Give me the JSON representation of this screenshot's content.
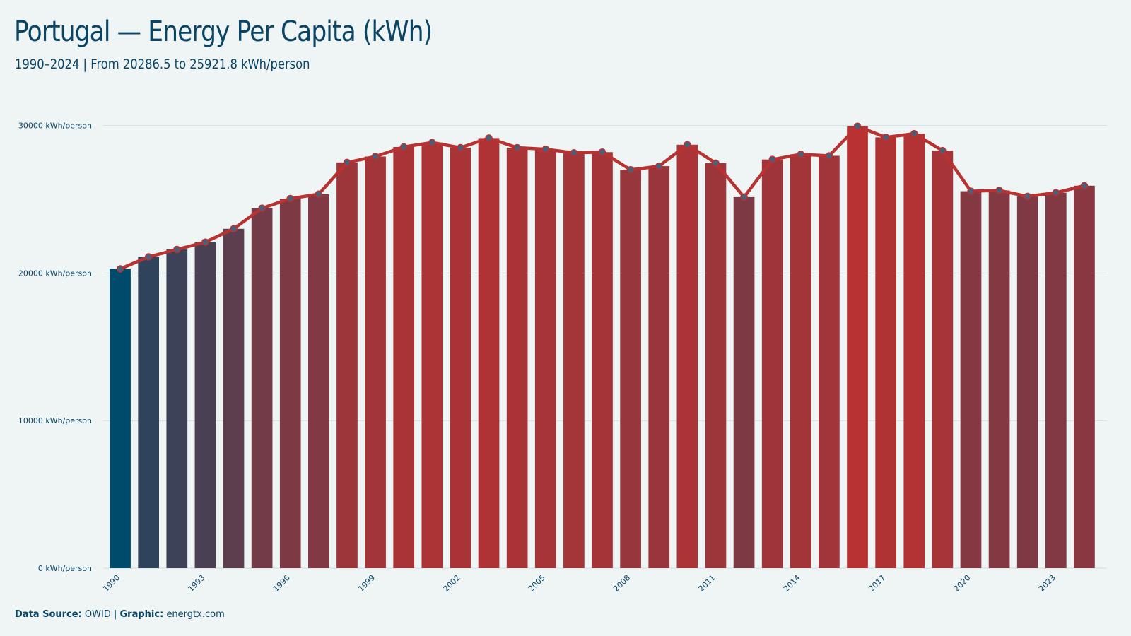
{
  "header": {
    "title": "Portugal — Energy Per Capita (kWh)",
    "subtitle": "1990–2024 | From 20286.5 to 25921.8 kWh/person"
  },
  "footer": {
    "source_label": "Data Source:",
    "source_value": "OWID",
    "separator": "|",
    "graphic_label": "Graphic:",
    "graphic_value": "energtx.com"
  },
  "colors": {
    "background": "#eff5f5",
    "low": "#004a6b",
    "high": "#b83232",
    "line": "#b83232",
    "marker": "#4a5f7a",
    "grid": "#d3dcdf",
    "text": "#0b4566"
  },
  "chart_data": {
    "type": "bar",
    "overlay": "line with markers",
    "x": [
      1990,
      1991,
      1992,
      1993,
      1994,
      1995,
      1996,
      1997,
      1998,
      1999,
      2000,
      2001,
      2002,
      2003,
      2004,
      2005,
      2006,
      2007,
      2008,
      2009,
      2010,
      2011,
      2012,
      2013,
      2014,
      2015,
      2016,
      2017,
      2018,
      2019,
      2020,
      2021,
      2022,
      2023,
      2024
    ],
    "values": [
      20286.5,
      21100,
      21600,
      22100,
      23000,
      24400,
      25050,
      25350,
      27500,
      27900,
      28550,
      28850,
      28500,
      29150,
      28500,
      28400,
      28150,
      28200,
      27000,
      27250,
      28700,
      27450,
      25150,
      27700,
      28050,
      27950,
      29950,
      29200,
      29450,
      28300,
      25550,
      25600,
      25200,
      25450,
      25921.8
    ],
    "x_tick_labels": [
      "1990",
      "1993",
      "1996",
      "1999",
      "2002",
      "2005",
      "2008",
      "2011",
      "2014",
      "2017",
      "2020",
      "2023"
    ],
    "y_ticks": [
      0,
      10000,
      20000,
      30000
    ],
    "y_tick_labels": [
      "0 kWh/person",
      "10000 kWh/person",
      "20000 kWh/person",
      "30000 kWh/person"
    ],
    "ylim": [
      0,
      30750
    ],
    "grid": "horizontal",
    "legend": "none"
  }
}
